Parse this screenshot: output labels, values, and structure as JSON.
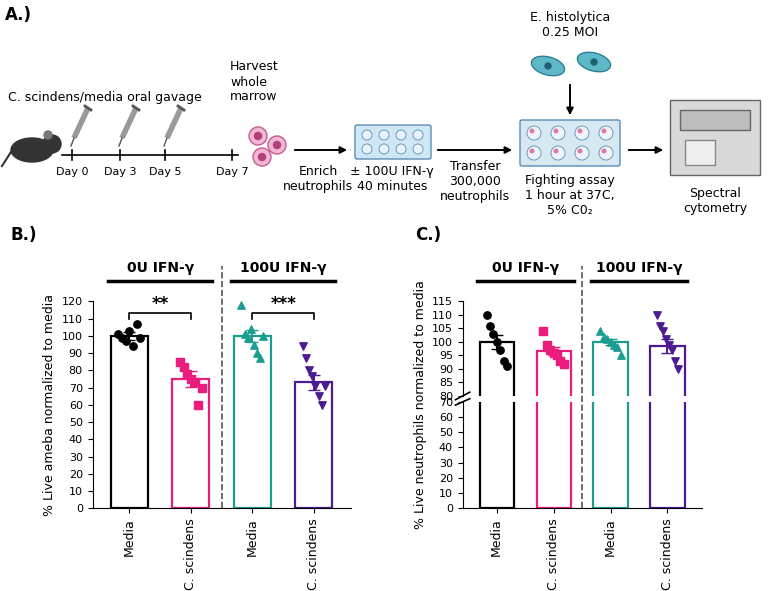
{
  "diagram": {
    "panel": "A.)",
    "gavage_label": "C. scindens/media oral gavage",
    "days": [
      "Day 0",
      "Day 3",
      "Day 5",
      "Day 7"
    ],
    "harvest": "Harvest\nwhole\nmarrow",
    "enrich": "Enrich\nneutrophils",
    "ifn": "± 100U IFN-γ\n40 minutes",
    "transfer": "Transfer\n300,000\nneutrophils",
    "ameba": "E. histolytica\n0.25 MOI",
    "assay": "Fighting assay\n1 hour at 37C,\n5% C0₂",
    "cytometry": "Spectral\ncytometry"
  },
  "chart_data": [
    {
      "type": "bar",
      "title": "B.)",
      "y_label": "% Live ameba normalized to media",
      "categories": [
        "Media",
        "C. scindens",
        "Media",
        "C. scindens"
      ],
      "values": [
        100,
        75,
        100,
        73
      ],
      "errors": [
        2.5,
        4.5,
        3.5,
        4.5
      ],
      "points": [
        [
          101,
          99,
          97,
          103,
          94,
          107,
          99
        ],
        [
          85,
          82,
          78,
          75,
          73,
          60,
          70
        ],
        [
          118,
          101,
          99,
          104,
          95,
          90,
          87,
          100
        ],
        [
          94,
          87,
          80,
          77,
          71,
          65,
          60,
          71
        ]
      ],
      "colors": [
        "#000000",
        "#ec1c7c",
        "#1b9e8f",
        "#4b1b8f"
      ],
      "groups": [
        {
          "label": "0U IFN-γ",
          "span": [
            0,
            1
          ]
        },
        {
          "label": "100U IFN-γ",
          "span": [
            2,
            3
          ]
        }
      ],
      "significance": [
        {
          "pair": [
            0,
            1
          ],
          "label": "**",
          "y": 113
        },
        {
          "pair": [
            2,
            3
          ],
          "label": "***",
          "y": 113
        }
      ],
      "ylim": [
        0,
        120
      ],
      "yticks": [
        0,
        10,
        20,
        30,
        40,
        50,
        60,
        70,
        80,
        90,
        100,
        110,
        120
      ]
    },
    {
      "type": "bar",
      "title": "C.)",
      "y_label": "% Live neutrophils normalized to media",
      "categories": [
        "Media",
        "C. scindens",
        "Media",
        "C. scindens"
      ],
      "values": [
        100,
        96.5,
        100,
        98.5
      ],
      "errors": [
        2.5,
        1.5,
        1,
        2.5
      ],
      "points": [
        [
          110,
          106,
          103,
          100,
          97,
          93,
          91
        ],
        [
          104,
          99,
          97,
          96,
          95,
          93,
          92
        ],
        [
          104,
          102,
          101,
          100,
          99,
          98,
          95
        ],
        [
          110,
          106,
          104,
          101,
          99,
          97,
          93,
          90
        ]
      ],
      "colors": [
        "#000000",
        "#ec1c7c",
        "#1b9e8f",
        "#4b1b8f"
      ],
      "groups": [
        {
          "label": "0U IFN-γ",
          "span": [
            0,
            1
          ]
        },
        {
          "label": "100U IFN-γ",
          "span": [
            2,
            3
          ]
        }
      ],
      "ylim": [
        0,
        115
      ],
      "axis_break": [
        70,
        80
      ],
      "yticks": [
        0,
        10,
        20,
        30,
        40,
        50,
        60,
        70,
        80,
        85,
        90,
        95,
        100,
        105,
        110,
        115
      ]
    }
  ]
}
